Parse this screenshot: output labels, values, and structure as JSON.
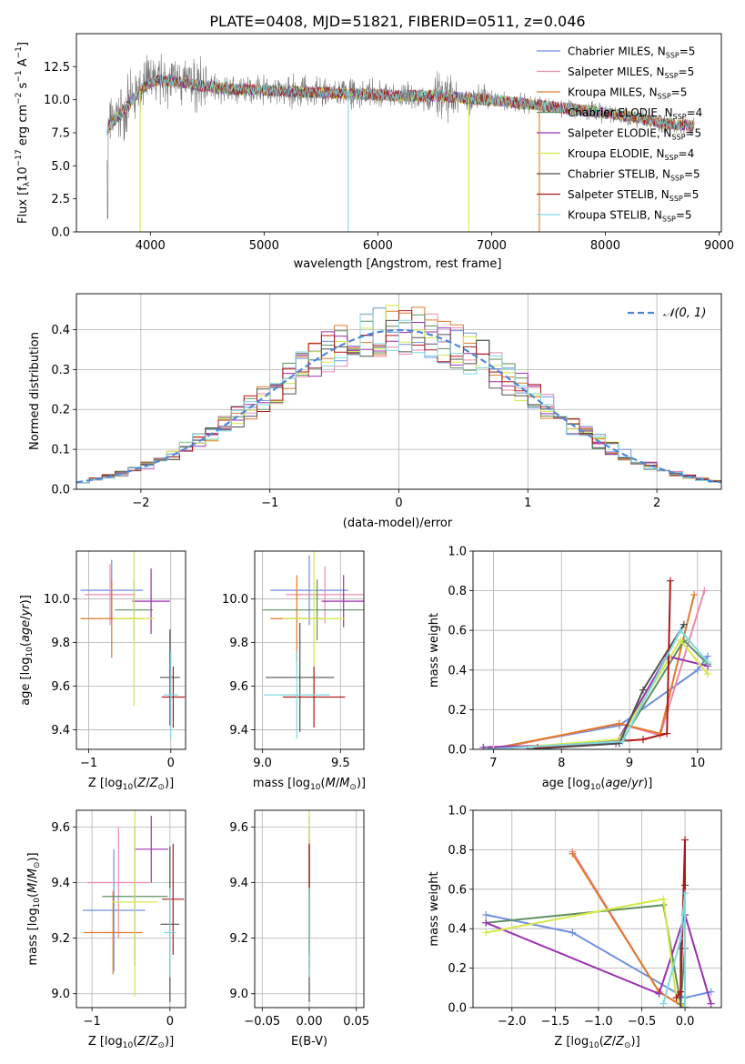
{
  "figure": {
    "title": "PLATE=0408, MJD=51821, FIBERID=0511, z=0.046"
  },
  "models": [
    {
      "name": "Chabrier MILES",
      "nssp": "5",
      "color": "#6f8fdf"
    },
    {
      "name": "Salpeter MILES",
      "nssp": "5",
      "color": "#e98bb0"
    },
    {
      "name": "Kroupa MILES",
      "nssp": "5",
      "color": "#e07a2a"
    },
    {
      "name": "Chabrier ELODIE",
      "nssp": "4",
      "color": "#5f8f5f"
    },
    {
      "name": "Salpeter ELODIE",
      "nssp": "5",
      "color": "#9b30b0"
    },
    {
      "name": "Kroupa ELODIE",
      "nssp": "4",
      "color": "#d4e84a"
    },
    {
      "name": "Chabrier STELIB",
      "nssp": "5",
      "color": "#505050"
    },
    {
      "name": "Salpeter STELIB",
      "nssp": "5",
      "color": "#b01818"
    },
    {
      "name": "Kroupa STELIB",
      "nssp": "5",
      "color": "#7fd8e0"
    }
  ],
  "chart_data": [
    {
      "id": "spectrum",
      "type": "line",
      "xlabel": "wavelength [Angstrom, rest frame]",
      "ylabel": "Flux [f_λ 10^-17 erg cm^-2 s^-1 A^-1]",
      "xlim": [
        3350,
        9020
      ],
      "ylim": [
        0,
        15
      ],
      "xticks": [
        4000,
        5000,
        6000,
        7000,
        8000,
        9000
      ],
      "yticks": [
        0.0,
        2.5,
        5.0,
        7.5,
        10.0,
        12.5
      ],
      "legend": "top-right",
      "data_color": "#777777",
      "continuum": {
        "x": [
          3620,
          3700,
          3800,
          3900,
          4000,
          4100,
          4200,
          4300,
          4400,
          4500,
          4700,
          5000,
          5300,
          5600,
          5900,
          6200,
          6500,
          6800,
          7100,
          7400,
          7700,
          8000,
          8300,
          8500,
          8700,
          8780
        ],
        "y": [
          7.8,
          8.6,
          9.5,
          10.6,
          11.3,
          11.5,
          11.4,
          11.3,
          11.1,
          11.0,
          10.8,
          10.7,
          10.6,
          10.5,
          10.4,
          10.3,
          10.3,
          10.1,
          9.9,
          9.6,
          9.3,
          9.0,
          8.6,
          8.2,
          8.1,
          8.0
        ]
      }
    },
    {
      "id": "residuals",
      "type": "step",
      "xlabel": "(data-model)/error",
      "ylabel": "Normed distribution",
      "xlim": [
        -2.5,
        2.5
      ],
      "ylim": [
        0,
        0.49
      ],
      "xticks": [
        -2,
        -1,
        0,
        1,
        2
      ],
      "yticks": [
        0.0,
        0.1,
        0.2,
        0.3,
        0.4
      ],
      "grid": true,
      "legend": "top-right",
      "reference_label": "𝒩(0, 1)",
      "reference_color": "#4f86d6",
      "bin_width": 0.1
    },
    {
      "id": "Z-age",
      "type": "errorbar",
      "xlabel": "Z [log10(Z/Z☉)]",
      "ylabel": "age [log10(age/yr)]",
      "xlim": [
        -1.15,
        0.18
      ],
      "ylim": [
        9.31,
        10.22
      ],
      "xticks": [
        -1,
        0
      ],
      "yticks": [
        9.4,
        9.6,
        9.8,
        10.0
      ],
      "grid": true,
      "points": [
        {
          "x": -0.72,
          "y": 10.04,
          "xerr": 0.38,
          "yerr": 0.14
        },
        {
          "x": -0.74,
          "y": 10.02,
          "xerr": 0.31,
          "yerr": 0.14
        },
        {
          "x": -0.72,
          "y": 9.91,
          "xerr": 0.38,
          "yerr": 0.18
        },
        {
          "x": -0.45,
          "y": 9.95,
          "xerr": 0.23,
          "yerr": 0.14
        },
        {
          "x": -0.24,
          "y": 9.99,
          "xerr": 0.23,
          "yerr": 0.15
        },
        {
          "x": -0.45,
          "y": 9.91,
          "xerr": 0.25,
          "yerr": 0.4
        },
        {
          "x": -0.01,
          "y": 9.64,
          "xerr": 0.12,
          "yerr": 0.22
        },
        {
          "x": 0.03,
          "y": 9.55,
          "xerr": 0.14,
          "yerr": 0.14
        },
        {
          "x": 0.0,
          "y": 9.56,
          "xerr": 0.09,
          "yerr": 0.2
        }
      ]
    },
    {
      "id": "mass-age",
      "type": "errorbar",
      "xlabel": "mass [log10(M/M☉)]",
      "ylabel": "",
      "xlim": [
        8.95,
        9.65
      ],
      "ylim": [
        9.31,
        10.22
      ],
      "xticks": [
        9.0,
        9.5
      ],
      "yticks": [
        9.4,
        9.6,
        9.8,
        10.0
      ],
      "grid": true,
      "points": [
        {
          "x": 9.3,
          "y": 10.04,
          "xerr": 0.25,
          "yerr": 0.16
        },
        {
          "x": 9.4,
          "y": 10.02,
          "xerr": 0.25,
          "yerr": 0.13
        },
        {
          "x": 9.22,
          "y": 9.91,
          "xerr": 0.17,
          "yerr": 0.2
        },
        {
          "x": 9.35,
          "y": 9.95,
          "xerr": 0.35,
          "yerr": 0.14
        },
        {
          "x": 9.52,
          "y": 9.99,
          "xerr": 0.14,
          "yerr": 0.12
        },
        {
          "x": 9.33,
          "y": 9.91,
          "xerr": 0.2,
          "yerr": 0.35
        },
        {
          "x": 9.24,
          "y": 9.64,
          "xerr": 0.22,
          "yerr": 0.25
        },
        {
          "x": 9.33,
          "y": 9.55,
          "xerr": 0.2,
          "yerr": 0.14
        },
        {
          "x": 9.22,
          "y": 9.56,
          "xerr": 0.21,
          "yerr": 0.2
        }
      ]
    },
    {
      "id": "age-weight",
      "type": "line",
      "xlabel": "age [log10(age/yr)]",
      "ylabel": "mass weight",
      "xlim": [
        6.7,
        10.35
      ],
      "ylim": [
        0,
        1.0
      ],
      "xticks": [
        7,
        8,
        9,
        10
      ],
      "yticks": [
        0.0,
        0.2,
        0.4,
        0.6,
        0.8,
        1.0
      ],
      "grid": true,
      "series": [
        {
          "x": [
            6.9,
            8.85,
            10.0,
            10.15
          ],
          "y": [
            0.0,
            0.12,
            0.4,
            0.47
          ]
        },
        {
          "x": [
            7.0,
            8.85,
            9.45,
            10.1
          ],
          "y": [
            0.0,
            0.13,
            0.07,
            0.8
          ]
        },
        {
          "x": [
            6.95,
            8.85,
            9.45,
            9.95
          ],
          "y": [
            0.0,
            0.13,
            0.08,
            0.78
          ]
        },
        {
          "x": [
            7.6,
            8.9,
            9.8,
            10.15
          ],
          "y": [
            0.0,
            0.05,
            0.55,
            0.43
          ]
        },
        {
          "x": [
            6.85,
            8.8,
            9.55,
            10.15
          ],
          "y": [
            0.01,
            0.03,
            0.47,
            0.42
          ]
        },
        {
          "x": [
            7.0,
            8.85,
            9.75,
            10.15
          ],
          "y": [
            0.0,
            0.05,
            0.55,
            0.38
          ]
        },
        {
          "x": [
            7.5,
            8.85,
            9.2,
            9.8
          ],
          "y": [
            0.0,
            0.03,
            0.3,
            0.63
          ]
        },
        {
          "x": [
            7.65,
            9.2,
            9.55,
            9.6
          ],
          "y": [
            0.01,
            0.05,
            0.08,
            0.85
          ]
        },
        {
          "x": [
            6.9,
            8.9,
            9.75,
            10.15
          ],
          "y": [
            0.0,
            0.04,
            0.6,
            0.44
          ]
        }
      ]
    },
    {
      "id": "Z-mass",
      "type": "errorbar",
      "xlabel": "Z [log10(Z/Z☉)]",
      "ylabel": "mass [log10(M/M☉)]",
      "xlim": [
        -1.2,
        0.2
      ],
      "ylim": [
        8.95,
        9.66
      ],
      "xticks": [
        -1,
        0
      ],
      "yticks": [
        9.0,
        9.2,
        9.4,
        9.6
      ],
      "grid": true,
      "points": [
        {
          "x": -0.72,
          "y": 9.3,
          "xerr": 0.4,
          "yerr": 0.22
        },
        {
          "x": -0.66,
          "y": 9.4,
          "xerr": 0.4,
          "yerr": 0.2
        },
        {
          "x": -0.73,
          "y": 9.22,
          "xerr": 0.38,
          "yerr": 0.15
        },
        {
          "x": -0.45,
          "y": 9.35,
          "xerr": 0.42,
          "yerr": 0.25
        },
        {
          "x": -0.24,
          "y": 9.52,
          "xerr": 0.22,
          "yerr": 0.12
        },
        {
          "x": -0.45,
          "y": 9.33,
          "xerr": 0.29,
          "yerr": 0.34
        },
        {
          "x": 0.0,
          "y": 9.25,
          "xerr": 0.12,
          "yerr": 0.28
        },
        {
          "x": 0.04,
          "y": 9.34,
          "xerr": 0.14,
          "yerr": 0.2
        },
        {
          "x": 0.0,
          "y": 9.22,
          "xerr": 0.08,
          "yerr": 0.16
        }
      ]
    },
    {
      "id": "ebv-mass",
      "type": "errorbar",
      "xlabel": "E(B-V)",
      "ylabel": "",
      "xlim": [
        -0.058,
        0.058
      ],
      "ylim": [
        8.95,
        9.66
      ],
      "xticks": [
        -0.05,
        0.0,
        0.05
      ],
      "yticks": [
        9.0,
        9.2,
        9.4,
        9.6
      ],
      "grid": true,
      "points": [
        {
          "x": 0.0,
          "y": 9.3,
          "xerr": 0.0,
          "yerr": 0.2
        },
        {
          "x": 0.0,
          "y": 9.4,
          "xerr": 0.0,
          "yerr": 0.2
        },
        {
          "x": 0.0,
          "y": 9.22,
          "xerr": 0.0,
          "yerr": 0.15
        },
        {
          "x": 0.0,
          "y": 9.35,
          "xerr": 0.0,
          "yerr": 0.2
        },
        {
          "x": 0.0,
          "y": 9.52,
          "xerr": 0.0,
          "yerr": 0.12
        },
        {
          "x": 0.0,
          "y": 9.33,
          "xerr": 0.0,
          "yerr": 0.34
        },
        {
          "x": 0.0,
          "y": 9.25,
          "xerr": 0.0,
          "yerr": 0.28
        },
        {
          "x": 0.0,
          "y": 9.34,
          "xerr": 0.0,
          "yerr": 0.2
        },
        {
          "x": 0.0,
          "y": 9.22,
          "xerr": 0.0,
          "yerr": 0.16
        }
      ]
    },
    {
      "id": "Z-weight",
      "type": "line",
      "xlabel": "Z [log10(Z/Z☉)]",
      "ylabel": "mass weight",
      "xlim": [
        -2.45,
        0.42
      ],
      "ylim": [
        0,
        1.0
      ],
      "xticks": [
        -2.0,
        -1.5,
        -1.0,
        -0.5,
        0.0
      ],
      "yticks": [
        0.0,
        0.2,
        0.4,
        0.6,
        0.8,
        1.0
      ],
      "grid": true,
      "series": [
        {
          "x": [
            -2.3,
            -1.3,
            0.0,
            0.3
          ],
          "y": [
            0.47,
            0.38,
            0.05,
            0.08
          ]
        },
        {
          "x": [
            -1.3,
            -0.3,
            0.0,
            -0.05
          ],
          "y": [
            0.79,
            0.08,
            0.0,
            0.0
          ]
        },
        {
          "x": [
            -1.3,
            -0.3,
            0.0,
            0.0
          ],
          "y": [
            0.78,
            0.08,
            0.0,
            0.0
          ]
        },
        {
          "x": [
            -2.3,
            -0.25,
            -0.05,
            0.0
          ],
          "y": [
            0.43,
            0.52,
            0.02,
            0.3
          ]
        },
        {
          "x": [
            -2.3,
            -0.3,
            0.0,
            0.3
          ],
          "y": [
            0.43,
            0.07,
            0.47,
            0.02
          ]
        },
        {
          "x": [
            -2.3,
            -0.25,
            -0.1,
            0.0
          ],
          "y": [
            0.38,
            0.55,
            0.05,
            0.0
          ]
        },
        {
          "x": [
            -0.05,
            -0.05,
            0.0,
            0.0
          ],
          "y": [
            0.0,
            0.3,
            0.62,
            0.0
          ]
        },
        {
          "x": [
            -0.1,
            -0.05,
            0.0,
            0.0
          ],
          "y": [
            0.05,
            0.08,
            0.85,
            0.0
          ]
        },
        {
          "x": [
            -0.25,
            -0.05,
            0.0,
            0.0
          ],
          "y": [
            0.02,
            0.35,
            0.58,
            0.0
          ]
        }
      ]
    }
  ]
}
